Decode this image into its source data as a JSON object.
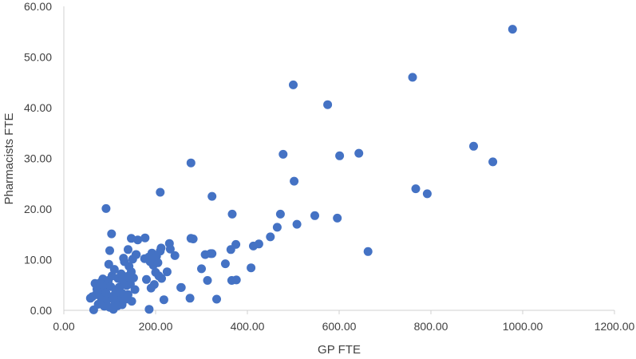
{
  "chart_data": {
    "type": "scatter",
    "title": "",
    "xlabel": "GP FTE",
    "ylabel": "Pharmacists FTE",
    "xlim": [
      0,
      1200
    ],
    "ylim": [
      0,
      60
    ],
    "xticks": [
      "0.00",
      "200.00",
      "400.00",
      "600.00",
      "800.00",
      "1000.00",
      "1200.00"
    ],
    "yticks": [
      "0.00",
      "10.00",
      "20.00",
      "30.00",
      "40.00",
      "50.00",
      "60.00"
    ],
    "grid": false,
    "legend": "none",
    "marker_color": "#4472C4",
    "series": [
      {
        "x": [
          978,
          500,
          760,
          575,
          277,
          478,
          643,
          601,
          893,
          935,
          502,
          210,
          767,
          792,
          323,
          92,
          367,
          472,
          547,
          596,
          508,
          465,
          450,
          104,
          147,
          161,
          177,
          282,
          277,
          308,
          230,
          375,
          413,
          425,
          364,
          663,
          320,
          140,
          100,
          130,
          158,
          176,
          193,
          212,
          242,
          256,
          300,
          313,
          323,
          352,
          366,
          376,
          408,
          255,
          218,
          333,
          58,
          62,
          65,
          68,
          70,
          72,
          75,
          78,
          80,
          82,
          85,
          87,
          88,
          90,
          92,
          95,
          97,
          98,
          100,
          102,
          105,
          107,
          108,
          110,
          112,
          115,
          117,
          118,
          120,
          122,
          125,
          127,
          128,
          130,
          132,
          135,
          137,
          138,
          140,
          142,
          145,
          147,
          148,
          150,
          152,
          155,
          157,
          180,
          185,
          188,
          190,
          192,
          195,
          197,
          200,
          202,
          205,
          207,
          210,
          213,
          186,
          190,
          225,
          232,
          275,
          108,
          113,
          120,
          80,
          73
        ],
        "y": [
          55.5,
          44.5,
          46,
          40.6,
          29.1,
          30.8,
          31,
          30.5,
          32.4,
          29.3,
          25.5,
          23.3,
          24,
          23,
          22.5,
          20.1,
          19,
          19,
          18.7,
          18.2,
          17,
          16.4,
          14.5,
          15.1,
          14.2,
          13.9,
          14.3,
          14.1,
          14.2,
          11,
          13.2,
          13,
          12.7,
          13.1,
          12,
          11.6,
          11.2,
          12,
          11.8,
          10.3,
          11,
          10.2,
          10.5,
          12.3,
          10.8,
          4.5,
          8.2,
          5.9,
          11.2,
          9.2,
          5.9,
          6,
          8.4,
          4.5,
          2.1,
          2.2,
          2.4,
          2.7,
          0.1,
          5.3,
          3.1,
          4.2,
          1.2,
          3.8,
          5.5,
          2.3,
          6.2,
          4.4,
          0.8,
          5.1,
          3.4,
          2.1,
          5.9,
          9.1,
          0.6,
          4.7,
          6.8,
          2.8,
          0.2,
          8.1,
          1.5,
          3.9,
          0.9,
          6.3,
          2.5,
          4.6,
          7.2,
          1.1,
          3.3,
          5.6,
          9.6,
          2.2,
          4.9,
          6.7,
          3.1,
          8.7,
          5.2,
          7.6,
          1.8,
          10.1,
          6.4,
          4.1,
          11,
          6.1,
          10.5,
          9.6,
          4.4,
          11.3,
          8.9,
          5.1,
          7.5,
          10.7,
          9.4,
          6.8,
          11.7,
          6.3,
          0.2,
          10.2,
          7.6,
          12.1,
          2.4,
          2.4,
          3.6,
          4.5,
          4.8,
          3.7
        ]
      }
    ]
  }
}
